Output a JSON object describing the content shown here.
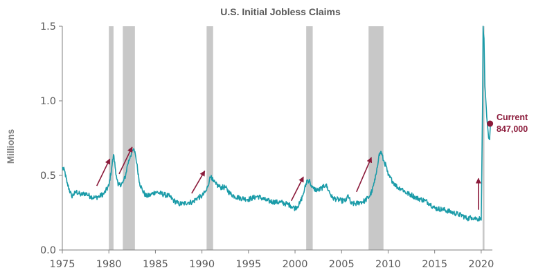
{
  "chart_data": {
    "type": "line",
    "title": "U.S. Initial Jobless Claims",
    "ylabel": "Millions",
    "xlabel": "",
    "xlim": [
      1975,
      2021.2
    ],
    "ylim": [
      0,
      1.5
    ],
    "x_ticks": [
      1975,
      1980,
      1985,
      1990,
      1995,
      2000,
      2005,
      2010,
      2015,
      2020
    ],
    "y_ticks": [
      0.0,
      0.5,
      1.0,
      1.5
    ],
    "y_tick_labels": [
      "0.0",
      "0.5",
      "1.0",
      "1.5"
    ],
    "grid": false,
    "legend": "none",
    "series": [
      {
        "color": "#1a9ba8",
        "x": [
          1975.0,
          1975.25,
          1975.5,
          1976.0,
          1976.5,
          1977.0,
          1977.5,
          1978.0,
          1978.5,
          1979.0,
          1979.5,
          1980.0,
          1980.3,
          1980.5,
          1980.8,
          1981.0,
          1981.5,
          1981.8,
          1982.0,
          1982.3,
          1982.6,
          1982.8,
          1983.0,
          1983.3,
          1983.6,
          1984.0,
          1984.5,
          1985.0,
          1986.0,
          1986.5,
          1987.0,
          1987.5,
          1988.0,
          1988.5,
          1989.0,
          1989.5,
          1990.0,
          1990.5,
          1990.8,
          1991.0,
          1991.2,
          1991.5,
          1992.0,
          1992.5,
          1993.0,
          1993.5,
          1994.0,
          1995.0,
          1996.0,
          1997.0,
          1998.0,
          1998.5,
          1999.0,
          1999.5,
          2000.0,
          2000.5,
          2000.8,
          2001.0,
          2001.3,
          2001.6,
          2001.8,
          2002.0,
          2002.5,
          2003.0,
          2003.3,
          2003.6,
          2004.0,
          2004.5,
          2005.0,
          2005.5,
          2005.7,
          2006.0,
          2006.5,
          2007.0,
          2007.5,
          2008.0,
          2008.3,
          2008.6,
          2008.8,
          2009.0,
          2009.25,
          2009.5,
          2009.8,
          2010.0,
          2010.5,
          2011.0,
          2011.5,
          2012.0,
          2012.5,
          2013.0,
          2013.5,
          2014.0,
          2014.5,
          2015.0,
          2016.0,
          2017.0,
          2017.5,
          2018.0,
          2018.5,
          2019.0,
          2019.5,
          2019.9,
          2020.0,
          2020.15,
          2020.2,
          2020.25,
          2020.3,
          2020.4,
          2020.5,
          2020.6,
          2020.7,
          2020.8,
          2020.9,
          2021.0
        ],
        "y": [
          0.55,
          0.53,
          0.45,
          0.36,
          0.39,
          0.37,
          0.38,
          0.36,
          0.35,
          0.36,
          0.38,
          0.43,
          0.55,
          0.64,
          0.5,
          0.43,
          0.45,
          0.5,
          0.57,
          0.63,
          0.67,
          0.66,
          0.58,
          0.45,
          0.4,
          0.36,
          0.37,
          0.39,
          0.37,
          0.36,
          0.33,
          0.31,
          0.31,
          0.32,
          0.32,
          0.35,
          0.36,
          0.4,
          0.47,
          0.5,
          0.46,
          0.44,
          0.42,
          0.42,
          0.38,
          0.36,
          0.35,
          0.34,
          0.36,
          0.33,
          0.32,
          0.32,
          0.31,
          0.3,
          0.28,
          0.31,
          0.36,
          0.4,
          0.47,
          0.46,
          0.42,
          0.41,
          0.4,
          0.42,
          0.44,
          0.4,
          0.35,
          0.34,
          0.33,
          0.33,
          0.37,
          0.31,
          0.31,
          0.32,
          0.33,
          0.36,
          0.4,
          0.47,
          0.55,
          0.63,
          0.66,
          0.6,
          0.56,
          0.5,
          0.46,
          0.42,
          0.41,
          0.38,
          0.37,
          0.35,
          0.34,
          0.33,
          0.31,
          0.28,
          0.27,
          0.25,
          0.24,
          0.23,
          0.21,
          0.22,
          0.21,
          0.21,
          0.2,
          1.0,
          1.5,
          1.45,
          1.42,
          1.1,
          1.0,
          0.89,
          0.82,
          0.75,
          0.74,
          0.85
        ]
      }
    ],
    "recession_bands": [
      [
        1980.0,
        1980.5
      ],
      [
        1981.5,
        1982.8
      ],
      [
        1990.5,
        1991.2
      ],
      [
        2001.2,
        2001.9
      ],
      [
        2007.9,
        2009.5
      ],
      [
        2020.15,
        2020.35
      ]
    ],
    "arrows": [
      {
        "from": [
          1978.7,
          0.43
        ],
        "to": [
          1980.1,
          0.61
        ]
      },
      {
        "from": [
          1981.1,
          0.51
        ],
        "to": [
          1982.5,
          0.69
        ]
      },
      {
        "from": [
          1988.9,
          0.38
        ],
        "to": [
          1990.3,
          0.53
        ]
      },
      {
        "from": [
          1999.6,
          0.33
        ],
        "to": [
          2000.9,
          0.49
        ]
      },
      {
        "from": [
          2006.6,
          0.39
        ],
        "to": [
          2008.2,
          0.62
        ]
      },
      {
        "from": [
          2019.7,
          0.27
        ],
        "to": [
          2019.7,
          0.48
        ]
      }
    ],
    "current_point": {
      "x": 2020.95,
      "y": 0.847
    },
    "annotation": {
      "line1": "Current",
      "line2": "847,000"
    },
    "accent_color": "#8b1a3a",
    "band_color": "#c8c8c8"
  }
}
